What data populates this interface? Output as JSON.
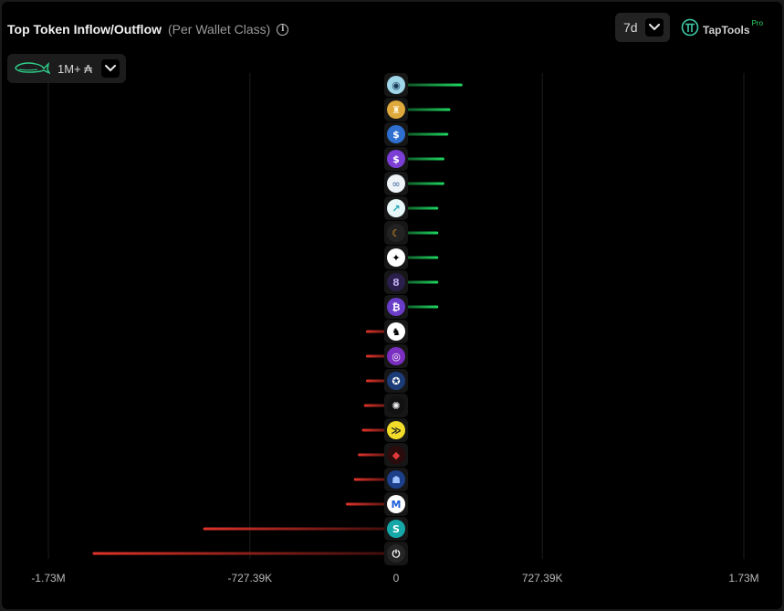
{
  "header": {
    "title": "Top Token Inflow/Outflow",
    "subtitle": "(Per Wallet Class)",
    "period": "7d",
    "wallet_class": "1M+ ₳",
    "brand_name": "TapTools",
    "brand_badge": "Pro"
  },
  "colors": {
    "inflow": "#1ed760",
    "outflow": "#e0342a",
    "grid": "#1e1e1e",
    "background": "#000000"
  },
  "chart_data": {
    "type": "bar",
    "orientation": "horizontal",
    "xlim": [
      -1730000,
      1730000
    ],
    "x_ticks": [
      {
        "value": -1730000,
        "label": "-1.73M"
      },
      {
        "value": -727390,
        "label": "-727.39K"
      },
      {
        "value": 0,
        "label": "0"
      },
      {
        "value": 727390,
        "label": "727.39K"
      },
      {
        "value": 1730000,
        "label": "1.73M"
      }
    ],
    "grid": true,
    "categories": [
      "token-01",
      "token-02",
      "token-03",
      "token-04",
      "token-05",
      "token-06",
      "token-07",
      "token-08",
      "token-09",
      "token-10",
      "token-11",
      "token-12",
      "token-13",
      "token-14",
      "token-15",
      "token-16",
      "token-17",
      "token-18",
      "token-19",
      "token-20"
    ],
    "values": [
      330000,
      270000,
      260000,
      240000,
      240000,
      210000,
      210000,
      210000,
      210000,
      210000,
      -150000,
      -150000,
      -150000,
      -160000,
      -170000,
      -190000,
      -210000,
      -250000,
      -960000,
      -1510000
    ],
    "icons": [
      {
        "name": "robot-token-icon",
        "bg": "#9fd7e8",
        "fg": "#1b3a5c",
        "glyph": "◉"
      },
      {
        "name": "gold-figure-token-icon",
        "bg": "#e0a93b",
        "fg": "#fff3d6",
        "glyph": "♜"
      },
      {
        "name": "usd-coin-token-icon",
        "bg": "#2f6fd0",
        "fg": "#ffffff",
        "glyph": "$"
      },
      {
        "name": "purple-dollar-token-icon",
        "bg": "#7b3fd6",
        "fg": "#ffffff",
        "glyph": "$"
      },
      {
        "name": "cloud-token-icon",
        "bg": "#eef3f8",
        "fg": "#6a8ab0",
        "glyph": "∞"
      },
      {
        "name": "teal-swirl-token-icon",
        "bg": "#e8f7f7",
        "fg": "#1aa5b8",
        "glyph": "↗"
      },
      {
        "name": "crescent-token-icon",
        "bg": "#222222",
        "fg": "#f0a21f",
        "glyph": "☾"
      },
      {
        "name": "checker-token-icon",
        "bg": "#ffffff",
        "fg": "#000000",
        "glyph": "✦"
      },
      {
        "name": "chain-token-icon",
        "bg": "#2a1e4a",
        "fg": "#b8a8e8",
        "glyph": "8"
      },
      {
        "name": "bitcoin-token-icon",
        "bg": "#6a3dc8",
        "fg": "#ffffff",
        "glyph": "₿"
      },
      {
        "name": "penguin-token-icon",
        "bg": "#ffffff",
        "fg": "#000000",
        "glyph": "♞"
      },
      {
        "name": "purple-ring-token-icon",
        "bg": "#7a2fc0",
        "fg": "#ffffff",
        "glyph": "◎"
      },
      {
        "name": "wolf-token-icon",
        "bg": "#1c3c78",
        "fg": "#ffffff",
        "glyph": "✪"
      },
      {
        "name": "sketch-token-icon",
        "bg": "#111111",
        "fg": "#eeeeee",
        "glyph": "✺"
      },
      {
        "name": "yellow-wing-token-icon",
        "bg": "#f2dc2a",
        "fg": "#222222",
        "glyph": "≫"
      },
      {
        "name": "red-diamond-token-icon",
        "bg": "#2a0c0c",
        "fg": "#e03a3a",
        "glyph": "◆"
      },
      {
        "name": "blue-cat-token-icon",
        "bg": "#1d3f8a",
        "fg": "#9fc0ff",
        "glyph": "☗"
      },
      {
        "name": "m-letter-token-icon",
        "bg": "#ffffff",
        "fg": "#1e5fd8",
        "glyph": "M"
      },
      {
        "name": "s-coin-token-icon",
        "bg": "#16a8a8",
        "fg": "#ffffff",
        "glyph": "S"
      },
      {
        "name": "power-token-icon",
        "bg": "#262626",
        "fg": "#ffffff",
        "glyph": "⏻"
      }
    ]
  }
}
